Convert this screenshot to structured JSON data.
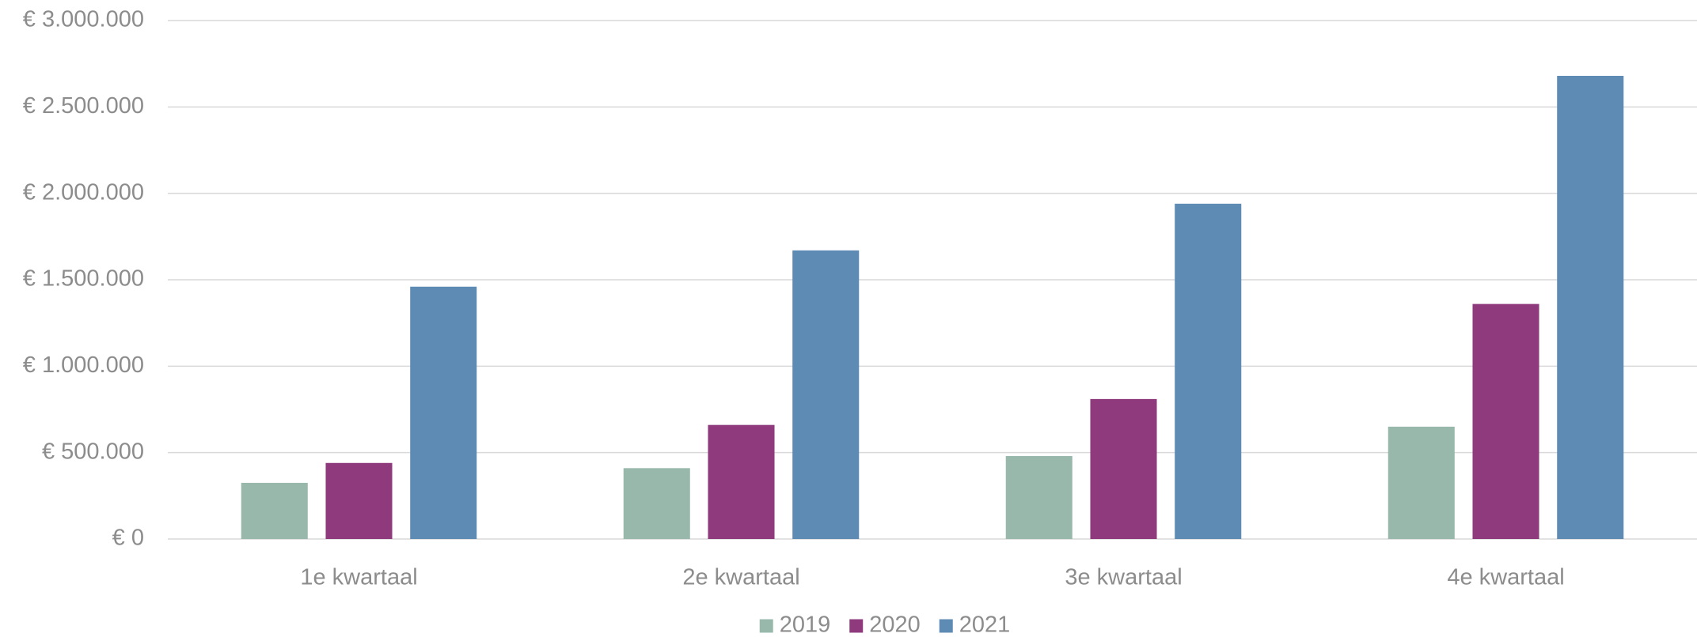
{
  "chart_data": {
    "type": "bar",
    "categories": [
      "1e kwartaal",
      "2e kwartaal",
      "3e kwartaal",
      "4e kwartaal"
    ],
    "series": [
      {
        "name": "2019",
        "color": "#98b8ac",
        "values": [
          325000,
          410000,
          480000,
          650000
        ]
      },
      {
        "name": "2020",
        "color": "#8e3a7c",
        "values": [
          440000,
          660000,
          810000,
          1360000
        ]
      },
      {
        "name": "2021",
        "color": "#5e8bb4",
        "values": [
          1460000,
          1670000,
          1940000,
          2680000
        ]
      }
    ],
    "ylim": [
      0,
      3000000
    ],
    "yticks": [
      {
        "value": 0,
        "label": "€ 0"
      },
      {
        "value": 500000,
        "label": "€ 500.000"
      },
      {
        "value": 1000000,
        "label": "€ 1.000.000"
      },
      {
        "value": 1500000,
        "label": "€ 1.500.000"
      },
      {
        "value": 2000000,
        "label": "€ 2.000.000"
      },
      {
        "value": 2500000,
        "label": "€ 2.500.000"
      },
      {
        "value": 3000000,
        "label": "€ 3.000.000"
      }
    ],
    "grid": true,
    "legend": "bottom"
  }
}
